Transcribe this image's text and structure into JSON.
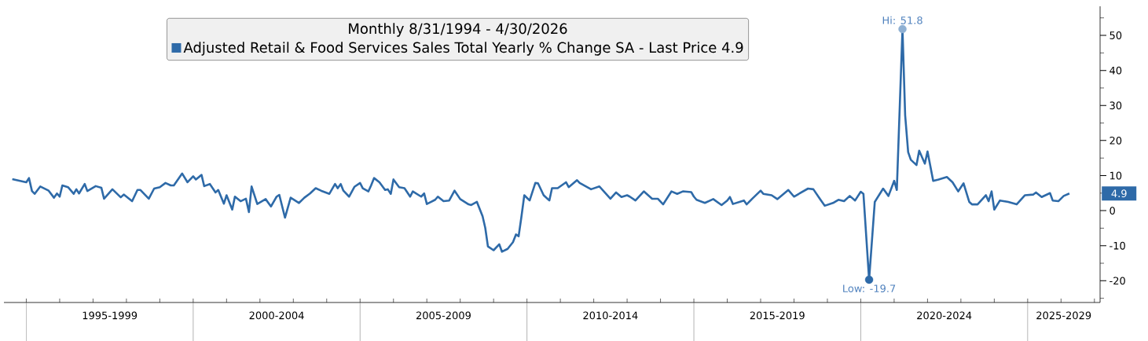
{
  "chart_data": {
    "type": "line",
    "legend_title": "Monthly 8/31/1994 - 4/30/2026",
    "legend": "top",
    "x": [
      "1994-08",
      "1995-01",
      "1995-02",
      "1995-03",
      "1995-04",
      "1995-06",
      "1995-09",
      "1995-11",
      "1995-12",
      "1996-01",
      "1996-02",
      "1996-04",
      "1996-06",
      "1996-07",
      "1996-08",
      "1996-10",
      "1996-11",
      "1997-02",
      "1997-04",
      "1997-05",
      "1997-08",
      "1997-11",
      "1997-12",
      "1998-03",
      "1998-05",
      "1998-06",
      "1998-09",
      "1998-11",
      "1999-01",
      "1999-03",
      "1999-05",
      "1999-06",
      "1999-09",
      "1999-11",
      "2000-01",
      "2000-02",
      "2000-04",
      "2000-05",
      "2000-07",
      "2000-09",
      "2000-10",
      "2000-12",
      "2001-01",
      "2001-03",
      "2001-04",
      "2001-06",
      "2001-08",
      "2001-09",
      "2001-10",
      "2001-12",
      "2002-03",
      "2002-05",
      "2002-07",
      "2002-08",
      "2002-10",
      "2002-12",
      "2003-03",
      "2003-05",
      "2003-07",
      "2003-09",
      "2003-11",
      "2004-02",
      "2004-04",
      "2004-05",
      "2004-06",
      "2004-07",
      "2004-09",
      "2004-11",
      "2005-01",
      "2005-02",
      "2005-04",
      "2005-05",
      "2005-06",
      "2005-08",
      "2005-10",
      "2005-11",
      "2005-12",
      "2006-01",
      "2006-03",
      "2006-05",
      "2006-07",
      "2006-08",
      "2006-11",
      "2006-12",
      "2007-01",
      "2007-04",
      "2007-05",
      "2007-07",
      "2007-09",
      "2007-11",
      "2008-01",
      "2008-04",
      "2008-05",
      "2008-07",
      "2008-09",
      "2008-10",
      "2008-11",
      "2009-01",
      "2009-03",
      "2009-04",
      "2009-06",
      "2009-08",
      "2009-09",
      "2009-10",
      "2009-11",
      "2009-12",
      "2010-02",
      "2010-04",
      "2010-05",
      "2010-07",
      "2010-09",
      "2010-10",
      "2010-12",
      "2011-03",
      "2011-04",
      "2011-07",
      "2011-08",
      "2011-12",
      "2012-03",
      "2012-05",
      "2012-07",
      "2012-09",
      "2012-11",
      "2013-01",
      "2013-02",
      "2013-04",
      "2013-07",
      "2013-10",
      "2013-12",
      "2014-02",
      "2014-05",
      "2014-07",
      "2014-09",
      "2014-12",
      "2015-01",
      "2015-02",
      "2015-05",
      "2015-08",
      "2015-11",
      "2016-01",
      "2016-02",
      "2016-03",
      "2016-07",
      "2016-08",
      "2016-10",
      "2017-01",
      "2017-02",
      "2017-05",
      "2017-07",
      "2017-11",
      "2018-01",
      "2018-06",
      "2018-08",
      "2018-10",
      "2018-12",
      "2019-03",
      "2019-05",
      "2019-07",
      "2019-09",
      "2019-11",
      "2020-01",
      "2020-02",
      "2020-04",
      "2020-06",
      "2020-09",
      "2020-11",
      "2021-01",
      "2021-02",
      "2021-04",
      "2021-05",
      "2021-06",
      "2021-07",
      "2021-09",
      "2021-10",
      "2021-12",
      "2022-01",
      "2022-03",
      "2022-05",
      "2022-08",
      "2022-10",
      "2022-12",
      "2023-02",
      "2023-04",
      "2023-05",
      "2023-07",
      "2023-10",
      "2023-11",
      "2023-12",
      "2024-01",
      "2024-03",
      "2024-06",
      "2024-09",
      "2024-12",
      "2025-03",
      "2025-04",
      "2025-06",
      "2025-09",
      "2025-10",
      "2025-12",
      "2026-02",
      "2026-04"
    ],
    "series": [
      {
        "name": "Adjusted Retail & Food Services Sales Total Yearly % Change SA - Last Price 4.9",
        "color": "#2e6aa8",
        "values": [
          9.0,
          8.1,
          9.3,
          5.6,
          4.8,
          6.9,
          5.7,
          3.7,
          4.9,
          4.0,
          7.2,
          6.7,
          4.8,
          6.1,
          4.9,
          7.6,
          5.6,
          7.0,
          6.5,
          3.4,
          6.1,
          3.8,
          4.6,
          2.7,
          5.9,
          5.9,
          3.4,
          6.3,
          6.7,
          7.9,
          7.2,
          7.2,
          10.6,
          8.1,
          9.8,
          8.9,
          10.2,
          7.0,
          7.6,
          5.2,
          5.9,
          2.0,
          4.4,
          0.3,
          4.0,
          2.7,
          3.4,
          -0.4,
          6.9,
          1.9,
          3.3,
          1.2,
          4.0,
          4.5,
          -2.0,
          3.7,
          2.2,
          3.7,
          4.9,
          6.4,
          5.7,
          4.8,
          7.6,
          6.4,
          7.6,
          5.7,
          4.0,
          6.8,
          7.9,
          6.4,
          5.5,
          7.2,
          9.3,
          8.1,
          5.9,
          6.1,
          4.8,
          8.9,
          6.7,
          6.4,
          4.0,
          5.5,
          4.0,
          4.9,
          1.9,
          3.1,
          4.0,
          2.7,
          2.9,
          5.7,
          3.3,
          1.8,
          1.6,
          2.5,
          -1.6,
          -4.9,
          -10.2,
          -11.3,
          -9.6,
          -11.7,
          -10.9,
          -9.0,
          -6.8,
          -7.3,
          -2.0,
          4.4,
          2.9,
          7.9,
          7.8,
          4.4,
          2.9,
          6.4,
          6.4,
          8.1,
          6.7,
          8.7,
          7.9,
          6.1,
          6.9,
          5.2,
          3.4,
          5.2,
          3.9,
          4.4,
          4.0,
          2.9,
          5.5,
          3.4,
          3.4,
          1.8,
          5.5,
          4.8,
          5.5,
          5.3,
          4.0,
          3.1,
          2.2,
          3.3,
          1.6,
          2.9,
          3.9,
          1.9,
          2.9,
          1.8,
          3.4,
          5.7,
          4.8,
          4.4,
          3.3,
          5.9,
          4.0,
          6.3,
          6.1,
          3.7,
          1.4,
          2.2,
          3.1,
          2.7,
          4.2,
          2.9,
          5.4,
          4.8,
          -19.7,
          2.5,
          6.3,
          4.2,
          8.5,
          5.9,
          51.8,
          27.2,
          16.7,
          14.5,
          13.0,
          17.1,
          13.4,
          16.9,
          8.5,
          8.9,
          9.6,
          8.1,
          5.5,
          7.8,
          2.5,
          1.8,
          1.8,
          4.4,
          2.7,
          5.5,
          0.3,
          2.9,
          2.5,
          1.8,
          4.4,
          4.6,
          5.2,
          3.9,
          5.0,
          2.9,
          2.7,
          4.2,
          4.9
        ]
      }
    ],
    "xlim": [
      "1994-05",
      "2027-03"
    ],
    "xticks": [
      {
        "value": "1995-01",
        "label": null
      },
      {
        "value": "1996-01",
        "label": null
      },
      {
        "value": "1997-01",
        "label": null
      },
      {
        "value": "1998-01",
        "label": null
      },
      {
        "value": "1999-01",
        "label": null
      },
      {
        "value": "2000-01",
        "label": null
      },
      {
        "value": "2001-01",
        "label": null
      },
      {
        "value": "2002-01",
        "label": null
      },
      {
        "value": "2003-01",
        "label": null
      },
      {
        "value": "2004-01",
        "label": null
      },
      {
        "value": "2005-01",
        "label": null
      },
      {
        "value": "2006-01",
        "label": null
      },
      {
        "value": "2007-01",
        "label": null
      },
      {
        "value": "2008-01",
        "label": null
      },
      {
        "value": "2009-01",
        "label": null
      },
      {
        "value": "2010-01",
        "label": null
      },
      {
        "value": "2011-01",
        "label": null
      },
      {
        "value": "2012-01",
        "label": null
      },
      {
        "value": "2013-01",
        "label": null
      },
      {
        "value": "2014-01",
        "label": null
      },
      {
        "value": "2015-01",
        "label": null
      },
      {
        "value": "2016-01",
        "label": null
      },
      {
        "value": "2017-01",
        "label": null
      },
      {
        "value": "2018-01",
        "label": null
      },
      {
        "value": "2019-01",
        "label": null
      },
      {
        "value": "2020-01",
        "label": null
      },
      {
        "value": "2021-01",
        "label": null
      },
      {
        "value": "2022-01",
        "label": null
      },
      {
        "value": "2023-01",
        "label": null
      },
      {
        "value": "2024-01",
        "label": null
      },
      {
        "value": "2025-01",
        "label": null
      },
      {
        "value": "2026-01",
        "label": null
      },
      {
        "value": "2027-01",
        "label": null
      },
      {
        "value": "1997-07",
        "label": "1995-1999"
      },
      {
        "value": "2002-07",
        "label": "2000-2004"
      },
      {
        "value": "2007-07",
        "label": "2005-2009"
      },
      {
        "value": "2012-07",
        "label": "2010-2014"
      },
      {
        "value": "2017-07",
        "label": "2015-2019"
      },
      {
        "value": "2022-07",
        "label": "2020-2024"
      },
      {
        "value": "2026-02",
        "label": "2025-2029"
      }
    ],
    "ylim": [
      -26.2,
      58.3
    ],
    "yticks": [
      -20,
      -10,
      0,
      10,
      20,
      30,
      40,
      50,
      {
        "value": -25,
        "label": null
      },
      {
        "value": -15,
        "label": null
      },
      {
        "value": -5,
        "label": null
      },
      {
        "value": 5,
        "label": null
      },
      {
        "value": 15,
        "label": null
      },
      {
        "value": 25,
        "label": null
      },
      {
        "value": 35,
        "label": null
      },
      {
        "value": 45,
        "label": null
      },
      {
        "value": 55,
        "label": null
      }
    ],
    "annotations": [
      {
        "text": "Hi: 51.8",
        "x": "2021-04",
        "y": 51.8
      },
      {
        "text": "Low: -19.7",
        "x": "2020-04",
        "y": -19.7
      },
      "4.9"
    ]
  }
}
